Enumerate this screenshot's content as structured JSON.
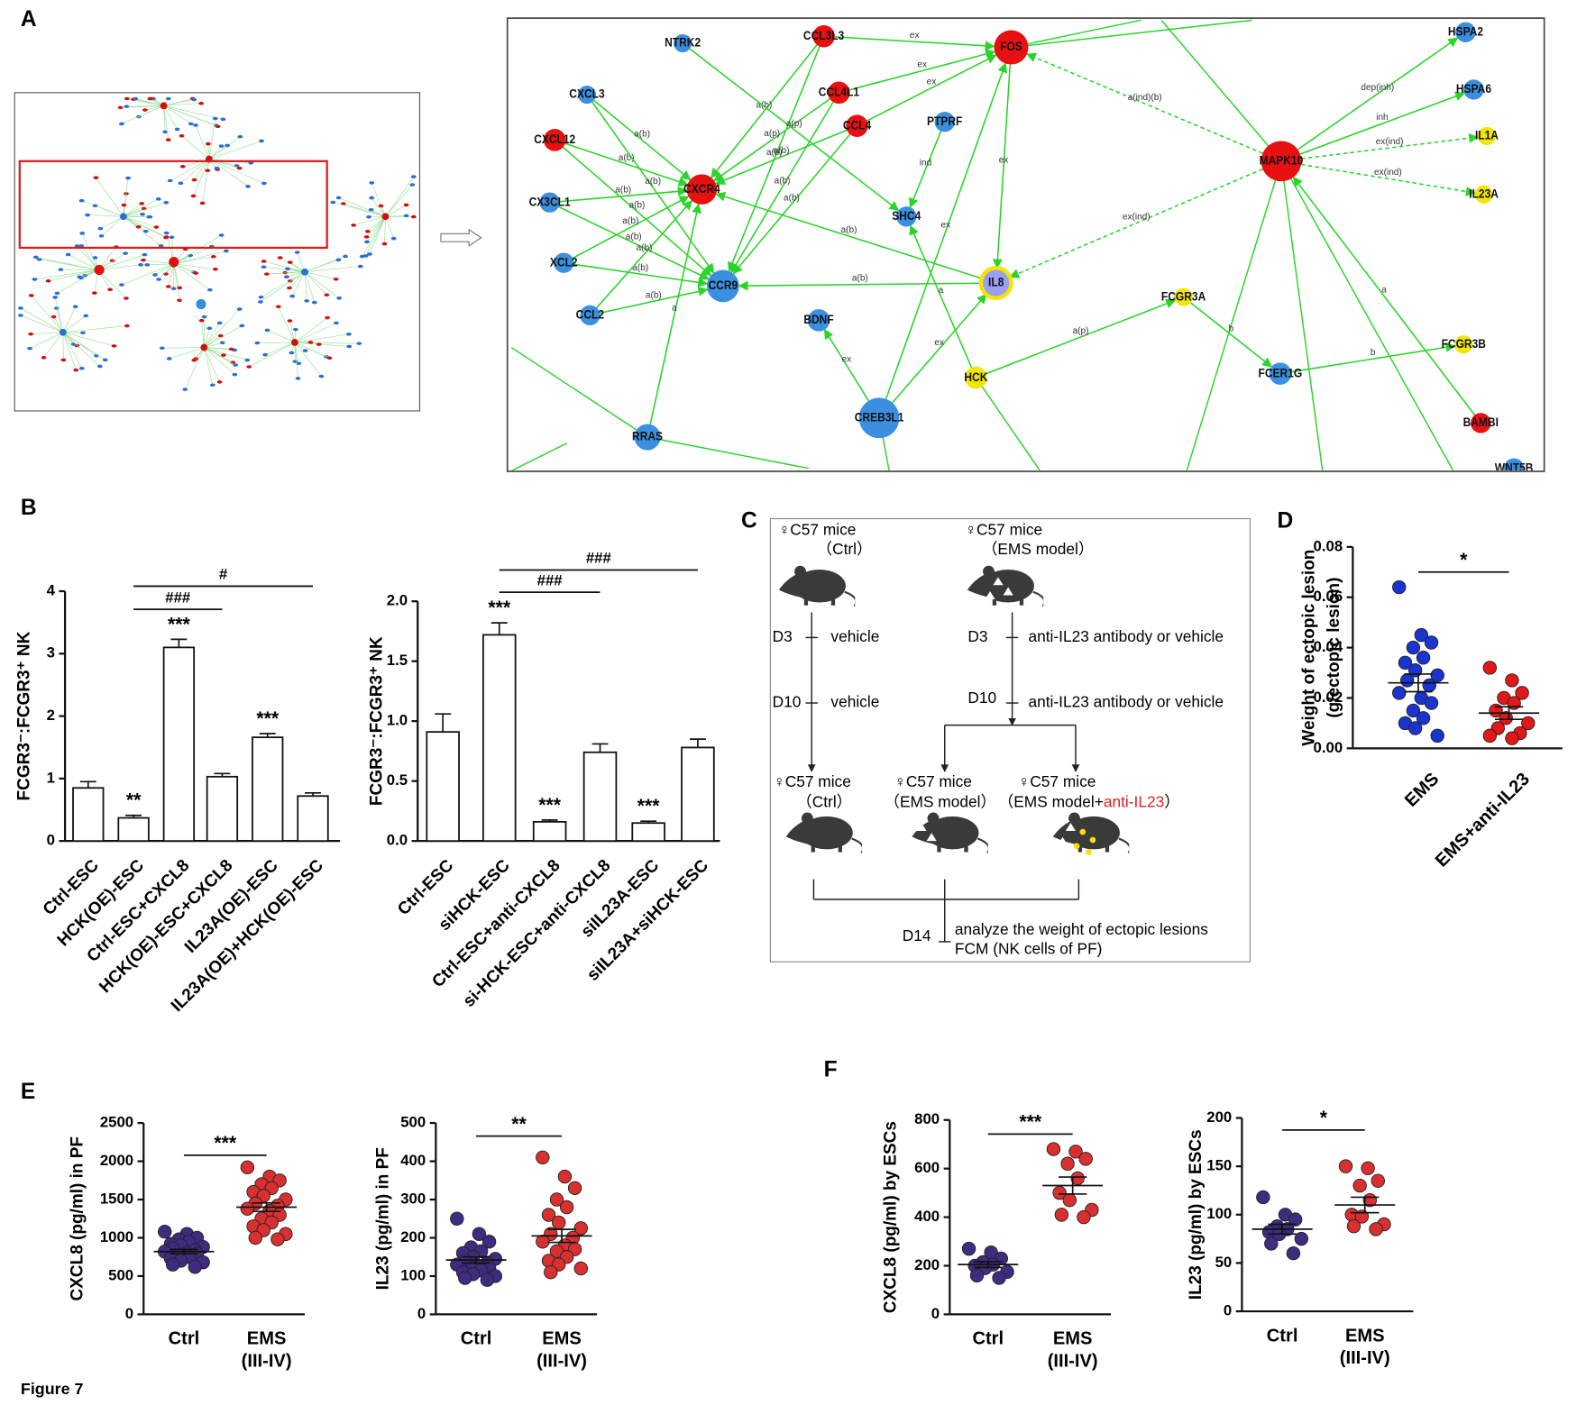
{
  "figure_label": "Figure 7",
  "panel_labels": [
    "A",
    "B",
    "C",
    "D",
    "E",
    "F"
  ],
  "network": {
    "nodes": [
      {
        "label": "NTRK2",
        "color": "#3b8fe0"
      },
      {
        "label": "CCL3L3",
        "color": "#e81010"
      },
      {
        "label": "FOS",
        "color": "#e81010"
      },
      {
        "label": "CXCL3",
        "color": "#3b8fe0"
      },
      {
        "label": "CCL4L1",
        "color": "#e81010"
      },
      {
        "label": "CCL4",
        "color": "#e81010"
      },
      {
        "label": "PTPRF",
        "color": "#3b8fe0"
      },
      {
        "label": "CXCL12",
        "color": "#e81010"
      },
      {
        "label": "CXCR4",
        "color": "#e81010"
      },
      {
        "label": "CX3CL1",
        "color": "#3b8fe0"
      },
      {
        "label": "SHC4",
        "color": "#3b8fe0"
      },
      {
        "label": "MAPK10",
        "color": "#e81010"
      },
      {
        "label": "HSPA2",
        "color": "#3b8fe0"
      },
      {
        "label": "HSPA6",
        "color": "#3b8fe0"
      },
      {
        "label": "IL1A",
        "color": "#f2e600"
      },
      {
        "label": "IL23A",
        "color": "#f2e600"
      },
      {
        "label": "XCL2",
        "color": "#3b8fe0"
      },
      {
        "label": "CCR9",
        "color": "#3b8fe0"
      },
      {
        "label": "IL8",
        "color": "#9c9ef2",
        "stroke": "#f2e600"
      },
      {
        "label": "FCGR3A",
        "color": "#f2e600"
      },
      {
        "label": "CCL2",
        "color": "#3b8fe0"
      },
      {
        "label": "BDNF",
        "color": "#3b8fe0"
      },
      {
        "label": "FCGR3B",
        "color": "#f2e600"
      },
      {
        "label": "HCK",
        "color": "#f2e600"
      },
      {
        "label": "FCER1G",
        "color": "#3b8fe0"
      },
      {
        "label": "CREB3L1",
        "color": "#3b8fe0"
      },
      {
        "label": "BAMBI",
        "color": "#e81010"
      },
      {
        "label": "RRAS",
        "color": "#3b8fe0"
      },
      {
        "label": "WNT5B",
        "color": "#3b8fe0"
      }
    ],
    "edges": [
      {
        "from": "CXCL12",
        "to": "CXCR4",
        "label": "a(b)"
      },
      {
        "from": "CXCL12",
        "to": "CCR9",
        "label": "a(b)"
      },
      {
        "from": "CXCL3",
        "to": "CXCR4",
        "label": "a(b)"
      },
      {
        "from": "CXCL3",
        "to": "CCR9",
        "label": "a(b)"
      },
      {
        "from": "CX3CL1",
        "to": "CXCR4",
        "label": "a(b)"
      },
      {
        "from": "CX3CL1",
        "to": "CCR9",
        "label": "a(b)"
      },
      {
        "from": "XCL2",
        "to": "CXCR4",
        "label": "a(b)"
      },
      {
        "from": "XCL2",
        "to": "CCR9",
        "label": "a(b)"
      },
      {
        "from": "CCL2",
        "to": "CXCR4",
        "label": "a(b)"
      },
      {
        "from": "CCL2",
        "to": "CCR9",
        "label": "a(b)"
      },
      {
        "from": "CCL3L3",
        "to": "CXCR4",
        "label": "a(b)"
      },
      {
        "from": "CCL3L3",
        "to": "CCR9",
        "label": "a(b)"
      },
      {
        "from": "CCL4L1",
        "to": "CXCR4",
        "label": "a(p)"
      },
      {
        "from": "CCL4L1",
        "to": "CCR9",
        "label": "a(b)"
      },
      {
        "from": "CCL4",
        "to": "CXCR4",
        "label": "a(b)"
      },
      {
        "from": "CCL4",
        "to": "CCR9",
        "label": "a(b)"
      },
      {
        "from": "CCL3L3",
        "to": "FOS",
        "label": "ex"
      },
      {
        "from": "CCL4L1",
        "to": "FOS",
        "label": "ex"
      },
      {
        "from": "CCL4",
        "to": "FOS",
        "label": "ex"
      },
      {
        "from": "FOS",
        "to": "IL8",
        "label": "ex"
      },
      {
        "from": "IL8",
        "to": "CCR9",
        "label": "a(b)"
      },
      {
        "from": "IL8",
        "to": "CXCR4",
        "label": "a(b)"
      },
      {
        "from": "PTPRF",
        "to": "SHC4",
        "label": "ind"
      },
      {
        "from": "NTRK2",
        "to": "SHC4",
        "label": "a(p)"
      },
      {
        "from": "CREB3L1",
        "to": "BDNF",
        "label": "ex"
      },
      {
        "from": "CREB3L1",
        "to": "IL8",
        "label": "ex"
      },
      {
        "from": "CREB3L1",
        "to": "FOS",
        "label": "ex"
      },
      {
        "from": "HCK",
        "to": "SHC4",
        "label": "a"
      },
      {
        "from": "MAPK10",
        "to": "FOS",
        "label": "a(ind)(b)",
        "style": "dashed"
      },
      {
        "from": "MAPK10",
        "to": "IL8",
        "label": "ex(ind)",
        "style": "dashed"
      },
      {
        "from": "MAPK10",
        "to": "HSPA2",
        "label": "dep(inh)"
      },
      {
        "from": "MAPK10",
        "to": "HSPA6",
        "label": "inh"
      },
      {
        "from": "MAPK10",
        "to": "IL1A",
        "label": "ex(ind)",
        "style": "dashed"
      },
      {
        "from": "MAPK10",
        "to": "IL23A",
        "label": "ex(ind)",
        "style": "dashed"
      },
      {
        "from": "FCGR3A",
        "to": "FCER1G",
        "label": "b"
      },
      {
        "from": "FCER1G",
        "to": "FCGR3B",
        "label": "b"
      },
      {
        "from": "HCK",
        "to": "FCGR3A",
        "label": "a(p)"
      },
      {
        "from": "BAMBI",
        "to": "MAPK10",
        "label": "a"
      },
      {
        "from": "RRAS",
        "to": "CXCR4",
        "label": "a"
      }
    ]
  },
  "flowchart": {
    "start": [
      [
        "♀C57 mice",
        "（Ctrl）"
      ],
      [
        "♀C57 mice",
        "（EMS model）"
      ]
    ],
    "left_steps": [
      {
        "day": "D3",
        "action": "vehicle"
      },
      {
        "day": "D10",
        "action": "vehicle"
      }
    ],
    "right_steps": [
      {
        "day": "D3",
        "action": "anti-IL23 antibody or vehicle"
      },
      {
        "day": "D10",
        "action": "anti-IL23 antibody or vehicle"
      }
    ],
    "groups": [
      [
        "♀C57 mice",
        "（Ctrl）"
      ],
      [
        "♀C57 mice",
        "（EMS model）"
      ],
      [
        "♀C57 mice",
        "（EMS model+",
        "anti-IL23",
        "）"
      ]
    ],
    "end": {
      "day": "D14",
      "lines": [
        "analyze the weight of ectopic lesions",
        "FCM (NK cells of PF)"
      ]
    }
  },
  "chart_data": [
    {
      "type": "bar",
      "ylabel": "FCGR3⁻:FCGR3⁺ NK",
      "categories": [
        "Ctrl-ESC",
        "HCK(OE)-ESC",
        "Ctrl-ESC+CXCL8",
        "HCK(OE)-ESC+CXCL8",
        "IL23A(OE)-ESC",
        "IL23A(OE)+HCK(OE)-ESC"
      ],
      "values": [
        0.85,
        0.37,
        3.1,
        1.03,
        1.66,
        0.72
      ],
      "errors": [
        0.1,
        0.04,
        0.13,
        0.05,
        0.06,
        0.05
      ],
      "significance": [
        null,
        "**",
        "***",
        null,
        "***",
        null
      ],
      "brackets": [
        {
          "label": "###",
          "span": [
            1,
            3
          ]
        },
        {
          "label": "#",
          "span": [
            1,
            5
          ]
        }
      ],
      "ylim": [
        0,
        4
      ],
      "yticks": [
        0,
        1,
        2,
        3,
        4
      ]
    },
    {
      "type": "bar",
      "ylabel": "FCGR3⁻:FCGR3⁺ NK",
      "categories": [
        "Ctrl-ESC",
        "siHCK-ESC",
        "Ctrl-ESC+anti-CXCL8",
        "si-HCK-ESC+anti-CXCL8",
        "siIL23A-ESC",
        "siIL23A+siHCK-ESC"
      ],
      "values": [
        0.91,
        1.72,
        0.16,
        0.74,
        0.15,
        0.78
      ],
      "errors": [
        0.15,
        0.1,
        0.015,
        0.07,
        0.015,
        0.07
      ],
      "significance": [
        null,
        "***",
        "***",
        null,
        "***",
        null
      ],
      "brackets": [
        {
          "label": "###",
          "span": [
            1,
            3
          ]
        },
        {
          "label": "###",
          "span": [
            1,
            5
          ]
        }
      ],
      "ylim": [
        0,
        2
      ],
      "yticks": [
        {
          "value": 0,
          "label": "0.0"
        },
        {
          "value": 0.5,
          "label": "0.5"
        },
        {
          "value": 1,
          "label": "1.0"
        },
        {
          "value": 1.5,
          "label": "1.5"
        },
        {
          "value": 2,
          "label": "2.0"
        }
      ]
    },
    {
      "type": "dot",
      "ylabel": [
        "Weight of ectopic lesion",
        "(g/ectopic lesion)"
      ],
      "rotate_labels": true,
      "categories": [
        [
          "EMS"
        ],
        [
          "EMS+anti-IL23"
        ]
      ],
      "groups": [
        {
          "color": "#1a34d0",
          "values": [
            0.064,
            0.045,
            0.042,
            0.04,
            0.036,
            0.034,
            0.031,
            0.029,
            0.027,
            0.025,
            0.022,
            0.02,
            0.018,
            0.015,
            0.012,
            0.01,
            0.008,
            0.005
          ],
          "mean": 0.026,
          "sem": 0.0035
        },
        {
          "color": "#e01818",
          "values": [
            0.032,
            0.027,
            0.022,
            0.02,
            0.018,
            0.015,
            0.012,
            0.01,
            0.008,
            0.006,
            0.005,
            0.004
          ],
          "mean": 0.014,
          "sem": 0.0025
        }
      ],
      "brackets": [
        {
          "label": "*",
          "span": [
            0,
            1
          ]
        }
      ],
      "ylim": [
        0,
        0.08
      ],
      "yticks": [
        {
          "value": 0,
          "label": "0.00"
        },
        {
          "value": 0.02,
          "label": "0.02"
        },
        {
          "value": 0.04,
          "label": "0.04"
        },
        {
          "value": 0.06,
          "label": "0.06"
        },
        {
          "value": 0.08,
          "label": "0.08"
        }
      ]
    },
    {
      "type": "dot",
      "ylabel": "CXCL8 (pg/ml) in PF",
      "categories": [
        [
          "Ctrl"
        ],
        [
          "EMS",
          "(III-IV)"
        ]
      ],
      "groups": [
        {
          "color": "#3f2c80",
          "values": [
            1080,
            1050,
            1000,
            980,
            950,
            920,
            900,
            880,
            860,
            840,
            820,
            800,
            790,
            770,
            750,
            730,
            700,
            680,
            650,
            620
          ],
          "mean": 820,
          "sem": 28
        },
        {
          "color": "#d83030",
          "values": [
            1920,
            1800,
            1750,
            1700,
            1650,
            1600,
            1550,
            1500,
            1450,
            1420,
            1380,
            1350,
            1300,
            1250,
            1200,
            1150,
            1100,
            1050,
            1000,
            980
          ],
          "mean": 1400,
          "sem": 55
        }
      ],
      "brackets": [
        {
          "label": "***",
          "span": [
            0,
            1
          ]
        }
      ],
      "ylim": [
        0,
        2500
      ],
      "yticks": [
        0,
        500,
        1000,
        1500,
        2000,
        2500
      ]
    },
    {
      "type": "dot",
      "ylabel": "IL23 (pg/ml) in PF",
      "categories": [
        [
          "Ctrl"
        ],
        [
          "EMS",
          "(III-IV)"
        ]
      ],
      "groups": [
        {
          "color": "#3f2c80",
          "values": [
            250,
            210,
            190,
            175,
            165,
            160,
            150,
            145,
            140,
            135,
            130,
            125,
            120,
            118,
            115,
            110,
            105,
            100,
            95,
            90
          ],
          "mean": 142,
          "sem": 8
        },
        {
          "color": "#d83030",
          "values": [
            410,
            360,
            330,
            300,
            280,
            260,
            240,
            225,
            210,
            200,
            190,
            180,
            170,
            165,
            150,
            140,
            130,
            120,
            110
          ],
          "mean": 205,
          "sem": 17
        }
      ],
      "brackets": [
        {
          "label": "**",
          "span": [
            0,
            1
          ]
        }
      ],
      "ylim": [
        0,
        500
      ],
      "yticks": [
        0,
        100,
        200,
        300,
        400,
        500
      ]
    },
    {
      "type": "dot",
      "ylabel": "CXCL8 (pg/ml) by ESCs",
      "categories": [
        [
          "Ctrl"
        ],
        [
          "EMS",
          "(III-IV)"
        ]
      ],
      "groups": [
        {
          "color": "#3f2c80",
          "values": [
            270,
            255,
            230,
            215,
            205,
            200,
            190,
            175,
            160,
            150
          ],
          "mean": 205,
          "sem": 12
        },
        {
          "color": "#d83030",
          "values": [
            680,
            670,
            640,
            620,
            560,
            500,
            470,
            430,
            410,
            400
          ],
          "mean": 530,
          "sem": 35
        }
      ],
      "brackets": [
        {
          "label": "***",
          "span": [
            0,
            1
          ]
        }
      ],
      "ylim": [
        0,
        800
      ],
      "yticks": [
        0,
        200,
        400,
        600,
        800
      ]
    },
    {
      "type": "dot",
      "ylabel": "IL23 (pg/ml) by ESCs",
      "categories": [
        [
          "Ctrl"
        ],
        [
          "EMS",
          "(III-IV)"
        ]
      ],
      "groups": [
        {
          "color": "#3f2c80",
          "values": [
            118,
            100,
            95,
            88,
            85,
            82,
            80,
            75,
            70,
            60
          ],
          "mean": 85,
          "sem": 5
        },
        {
          "color": "#d83030",
          "values": [
            150,
            148,
            135,
            130,
            115,
            100,
            98,
            90,
            88,
            85
          ],
          "mean": 110,
          "sem": 8
        }
      ],
      "brackets": [
        {
          "label": "*",
          "span": [
            0,
            1
          ]
        }
      ],
      "ylim": [
        0,
        200
      ],
      "yticks": [
        0,
        50,
        100,
        150,
        200
      ]
    }
  ]
}
